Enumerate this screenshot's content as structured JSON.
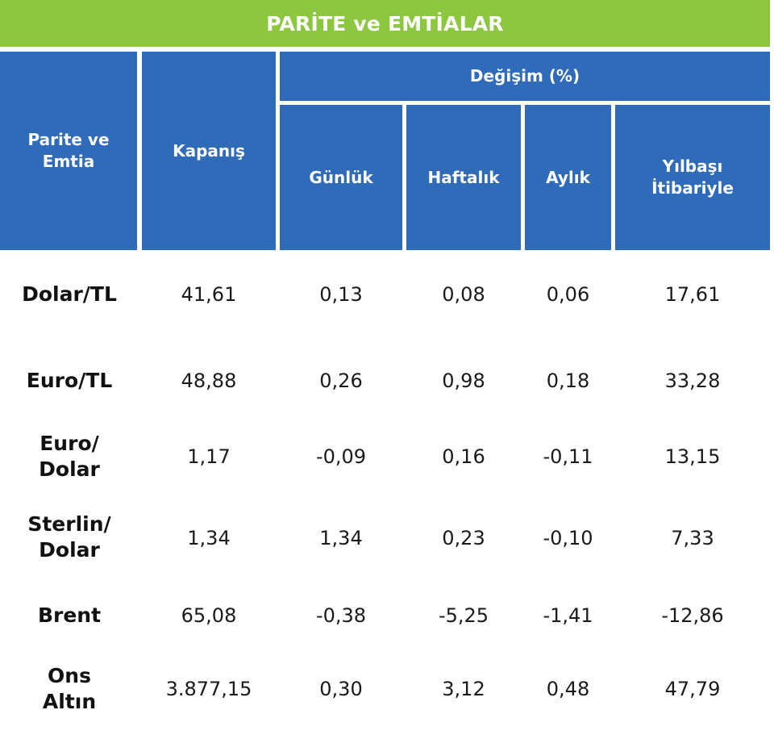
{
  "title": "PARİTE ve EMTİALAR",
  "headers": {
    "parite": [
      "Parite ve",
      "Emtia"
    ],
    "kapanis": "Kapanış",
    "degisim": "Değişim (%)",
    "gunluk": "Günlük",
    "haftalik": "Haftalık",
    "aylik": "Aylık",
    "yilbasi": [
      "Yılbaşı",
      "İtibariyle"
    ]
  },
  "rows": [
    {
      "label": [
        "Dolar/TL"
      ],
      "kapanis": "41,61",
      "gunluk": "0,13",
      "haftalik": "0,08",
      "aylik": "0,06",
      "yilbasi": "17,61"
    },
    {
      "label": [
        "Euro/TL"
      ],
      "kapanis": "48,88",
      "gunluk": "0,26",
      "haftalik": "0,98",
      "aylik": "0,18",
      "yilbasi": "33,28"
    },
    {
      "label": [
        "Euro/",
        "Dolar"
      ],
      "kapanis": "1,17",
      "gunluk": "-0,09",
      "haftalik": "0,16",
      "aylik": "-0,11",
      "yilbasi": "13,15"
    },
    {
      "label": [
        "Sterlin/",
        "Dolar"
      ],
      "kapanis": "1,34",
      "gunluk": "1,34",
      "haftalik": "0,23",
      "aylik": "-0,10",
      "yilbasi": "7,33"
    },
    {
      "label": [
        "Brent"
      ],
      "kapanis": "65,08",
      "gunluk": "-0,38",
      "haftalik": "-5,25",
      "aylik": "-1,41",
      "yilbasi": "-12,86"
    },
    {
      "label": [
        "Ons",
        "Altın"
      ],
      "kapanis": "3.877,15",
      "gunluk": "0,30",
      "haftalik": "3,12",
      "aylik": "0,48",
      "yilbasi": "47,79"
    }
  ]
}
